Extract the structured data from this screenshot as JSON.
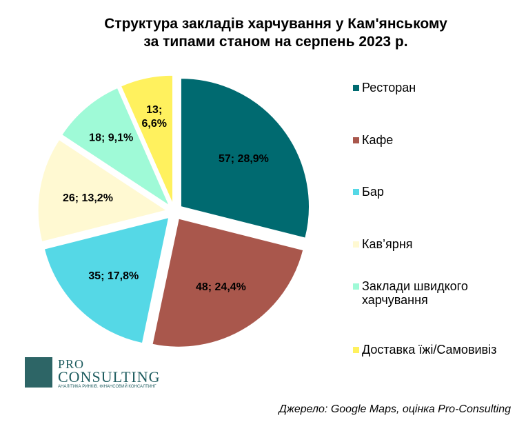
{
  "chart_data": {
    "type": "pie",
    "title": [
      "Структура закладів харчування у Кам'янському",
      "за типами станом на серпень 2023 р."
    ],
    "categories": [
      "Ресторан",
      "Кафе",
      "Бар",
      "Кав’ярня",
      "Заклади швидкого харчування",
      "Доставка їжі/Самовивіз"
    ],
    "legend_lines": [
      [
        "Ресторан"
      ],
      [
        "Кафе"
      ],
      [
        "Бар"
      ],
      [
        "Кав’ярня"
      ],
      [
        "Заклади швидкого",
        "харчування"
      ],
      [
        "Доставка їжі/Самовивіз"
      ]
    ],
    "values": [
      57,
      48,
      35,
      26,
      18,
      13
    ],
    "percents": [
      "28,9%",
      "24,4%",
      "17,8%",
      "13,2%",
      "9,1%",
      "6,6%"
    ],
    "colors": [
      "#006a70",
      "#a9574c",
      "#55d8e6",
      "#fff9d2",
      "#9ffad7",
      "#fff15e"
    ],
    "legend_position": "right",
    "exploded": true
  },
  "logo": {
    "line1": "PRO",
    "line2": "CONSULTING",
    "tagline": "АНАЛІТИКА РИНКІВ. ФІНАНСОВИЙ КОНСАЛТИНГ"
  },
  "source": "Джерело: Google Maps, оцінка Pro-Consulting"
}
